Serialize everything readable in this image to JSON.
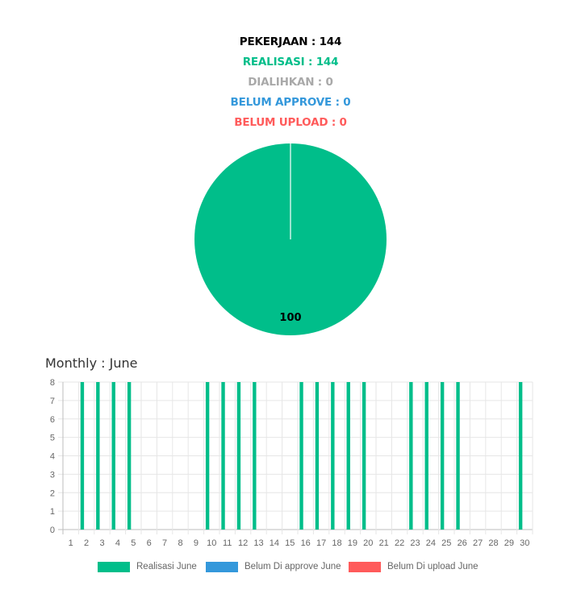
{
  "summary": {
    "pekerjaan": "PEKERJAAN : 144",
    "realisasi": "REALISASI : 144",
    "dialihkan": "DIALIHKAN : 0",
    "belum_approve": "BELUM APPROVE : 0",
    "belum_upload": "BELUM UPLOAD : 0"
  },
  "colors": {
    "realisasi": "#00be8a",
    "belum_approve": "#3498db",
    "belum_upload": "#ff5b5b",
    "dialihkan": "#a9a9a9",
    "black": "#000000"
  },
  "monthly_title": "Monthly : June",
  "chart_data": [
    {
      "type": "pie",
      "labels": [
        "Realisasi",
        "Dialihkan",
        "Belum Approve",
        "Belum Upload"
      ],
      "values": [
        100,
        0,
        0,
        0
      ],
      "data_labels": [
        "100"
      ]
    },
    {
      "type": "bar",
      "categories": [
        "1",
        "2",
        "3",
        "4",
        "5",
        "6",
        "7",
        "8",
        "9",
        "10",
        "11",
        "12",
        "13",
        "14",
        "15",
        "16",
        "17",
        "18",
        "19",
        "20",
        "21",
        "22",
        "23",
        "24",
        "25",
        "26",
        "27",
        "28",
        "29",
        "30"
      ],
      "series": [
        {
          "name": "Realisasi June",
          "values": [
            0,
            8,
            8,
            8,
            8,
            0,
            0,
            0,
            0,
            8,
            8,
            8,
            8,
            0,
            0,
            8,
            8,
            8,
            8,
            8,
            0,
            0,
            8,
            8,
            8,
            8,
            0,
            0,
            0,
            8
          ]
        },
        {
          "name": "Belum Di approve June",
          "values": [
            0,
            0,
            0,
            0,
            0,
            0,
            0,
            0,
            0,
            0,
            0,
            0,
            0,
            0,
            0,
            0,
            0,
            0,
            0,
            0,
            0,
            0,
            0,
            0,
            0,
            0,
            0,
            0,
            0,
            0
          ]
        },
        {
          "name": "Belum Di upload June",
          "values": [
            0,
            0,
            0,
            0,
            0,
            0,
            0,
            0,
            0,
            0,
            0,
            0,
            0,
            0,
            0,
            0,
            0,
            0,
            0,
            0,
            0,
            0,
            0,
            0,
            0,
            0,
            0,
            0,
            0,
            0
          ]
        }
      ],
      "yticks": [
        "0",
        "1",
        "2",
        "3",
        "4",
        "5",
        "6",
        "7",
        "8"
      ],
      "ylim": [
        0,
        8
      ],
      "grid": true,
      "legend_position": "bottom"
    }
  ]
}
